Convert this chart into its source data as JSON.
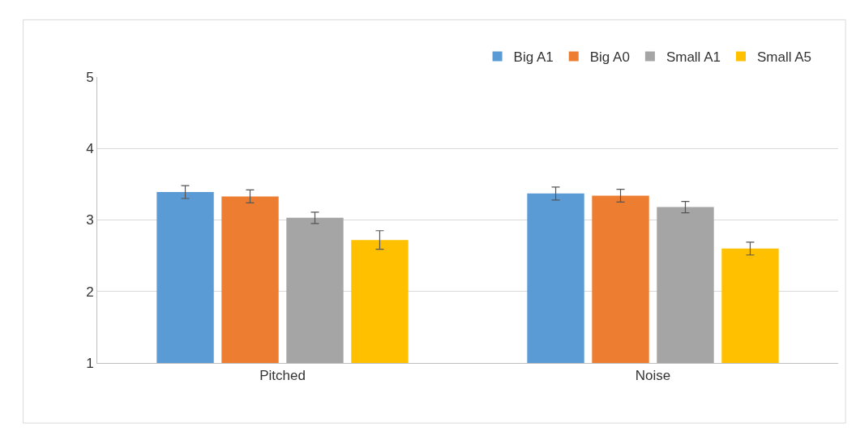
{
  "chart_data": {
    "type": "bar",
    "categories": [
      "Pitched",
      "Noise"
    ],
    "series": [
      {
        "name": "Big A1",
        "color": "#5b9bd5",
        "values": [
          3.39,
          3.37
        ],
        "errors": [
          0.09,
          0.09
        ]
      },
      {
        "name": "Big A0",
        "color": "#ed7d31",
        "values": [
          3.33,
          3.34
        ],
        "errors": [
          0.09,
          0.09
        ]
      },
      {
        "name": "Small A1",
        "color": "#a5a5a5",
        "values": [
          3.03,
          3.18
        ],
        "errors": [
          0.08,
          0.08
        ]
      },
      {
        "name": "Small A5",
        "color": "#ffc000",
        "values": [
          2.72,
          2.6
        ],
        "errors": [
          0.13,
          0.09
        ]
      }
    ],
    "ylim": [
      1,
      5
    ],
    "yticks": [
      1,
      2,
      3,
      4,
      5
    ],
    "grid": "y",
    "legend": "top"
  }
}
